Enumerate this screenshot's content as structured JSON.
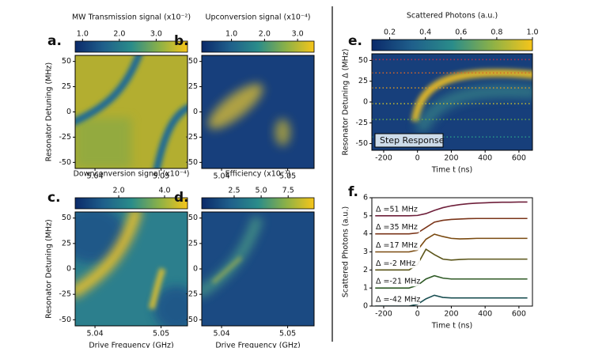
{
  "chart_data": [
    {
      "type": "heatmap",
      "panel": "a.",
      "colorbar_label": "MW Transmission signal (x10⁻²)",
      "ylabel": "Resonator Detuning (MHz)",
      "xlim": [
        5.037,
        5.054
      ],
      "ylim": [
        -56,
        56
      ],
      "xticks": [
        5.04,
        5.05
      ],
      "yticks": [
        -50,
        -25,
        0,
        25,
        50
      ],
      "clim": [
        0.8,
        3.85
      ],
      "cticks": [
        {
          "value": 1,
          "label": "1.0"
        },
        {
          "value": 2,
          "label": "2.0"
        },
        {
          "value": 3,
          "label": "3.0"
        }
      ]
    },
    {
      "type": "heatmap",
      "panel": "b.",
      "colorbar_label": "Upconversion signal (x10⁻⁴)",
      "xlim": [
        5.037,
        5.054
      ],
      "ylim": [
        -56,
        56
      ],
      "xticks": [
        5.04,
        5.05
      ],
      "yticks": [
        -50,
        -25,
        0,
        25,
        50
      ],
      "clim": [
        0.1,
        3.5
      ],
      "cticks": [
        {
          "value": 1,
          "label": "1.0"
        },
        {
          "value": 2,
          "label": "2.0"
        },
        {
          "value": 3,
          "label": "3.0"
        }
      ]
    },
    {
      "type": "heatmap",
      "panel": "c.",
      "colorbar_label": "Downconversion signal (x10⁻⁴)",
      "xlabel": "Drive Frequency (GHz)",
      "ylabel": "Resonator Detuning (MHz)",
      "xlim": [
        5.037,
        5.054
      ],
      "ylim": [
        -56,
        56
      ],
      "xticks": [
        5.04,
        5.05
      ],
      "yticks": [
        -50,
        -25,
        0,
        25,
        50
      ],
      "clim": [
        0.1,
        5.0
      ],
      "cticks": [
        {
          "value": 2,
          "label": "2.0"
        },
        {
          "value": 4,
          "label": "4.0"
        }
      ]
    },
    {
      "type": "heatmap",
      "panel": "d.",
      "colorbar_label": "Efficiency (x10⁻³)",
      "xlabel": "Drive Frequency (GHz)",
      "xlim": [
        5.037,
        5.054
      ],
      "ylim": [
        -56,
        56
      ],
      "xticks": [
        5.04,
        5.05
      ],
      "yticks": [
        -50,
        -25,
        0,
        25,
        50
      ],
      "clim": [
        -0.5,
        9.9
      ],
      "cticks": [
        2.5,
        {
          "value": 5,
          "label": "5.0"
        },
        7.5
      ]
    },
    {
      "type": "heatmap",
      "panel": "e.",
      "colorbar_label": "Scattered Photons (a.u.)",
      "annotation": "Step Response",
      "xlabel": "Time t (ns)",
      "ylabel": "Resonator Detuning Δ (MHz)",
      "xlim": [
        -270,
        680
      ],
      "ylim": [
        -58,
        58
      ],
      "xticks": [
        -200,
        0,
        200,
        400,
        600
      ],
      "yticks": [
        -50,
        -25,
        0,
        25,
        50
      ],
      "clim": [
        0.1,
        1.0
      ],
      "cticks": [
        0.2,
        0.4,
        0.6,
        0.8,
        {
          "value": 1,
          "label": "1.0"
        }
      ],
      "hlines": [
        51,
        35,
        17,
        -2,
        -21,
        -42
      ],
      "hline_colors": [
        "#c0304a",
        "#d8662a",
        "#e8a020",
        "#c9c030",
        "#6aa84a",
        "#2a9a8a"
      ]
    },
    {
      "type": "line",
      "panel": "f.",
      "xlabel": "Time t (ns)",
      "ylabel": "Scattered Photons (a.u.)",
      "xlim": [
        -270,
        680
      ],
      "ylim": [
        0,
        6
      ],
      "xticks": [
        -200,
        0,
        200,
        400,
        600
      ],
      "yticks": [
        0,
        1,
        2,
        3,
        4,
        5,
        6
      ],
      "x": [
        -250,
        -200,
        -150,
        -100,
        -50,
        0,
        50,
        100,
        150,
        200,
        250,
        300,
        350,
        400,
        450,
        500,
        550,
        600,
        650
      ],
      "series": [
        {
          "name": "Δ =51 MHz",
          "color": "#6e1f3a",
          "values": [
            5,
            5,
            5,
            5,
            5,
            5.02,
            5.12,
            5.3,
            5.45,
            5.55,
            5.62,
            5.67,
            5.7,
            5.72,
            5.74,
            5.75,
            5.75,
            5.76,
            5.76
          ]
        },
        {
          "name": "Δ =35 MHz",
          "color": "#7a3418",
          "values": [
            4,
            4,
            4,
            4,
            4,
            4.05,
            4.35,
            4.65,
            4.75,
            4.8,
            4.82,
            4.84,
            4.85,
            4.85,
            4.85,
            4.85,
            4.85,
            4.85,
            4.85
          ]
        },
        {
          "name": "Δ =17 MHz",
          "color": "#7a4a10",
          "values": [
            3,
            3,
            3,
            3,
            3,
            3.1,
            3.7,
            3.98,
            3.85,
            3.75,
            3.72,
            3.73,
            3.75,
            3.75,
            3.75,
            3.75,
            3.75,
            3.75,
            3.75
          ]
        },
        {
          "name": "Δ =-2 MHz",
          "color": "#5a5418",
          "values": [
            2,
            2,
            2,
            2,
            2,
            2.3,
            3.15,
            2.85,
            2.6,
            2.55,
            2.58,
            2.6,
            2.6,
            2.6,
            2.6,
            2.6,
            2.6,
            2.6,
            2.6
          ]
        },
        {
          "name": "Δ =-21 MHz",
          "color": "#2f5a26",
          "values": [
            1,
            1,
            1,
            1,
            1,
            1.15,
            1.5,
            1.68,
            1.55,
            1.5,
            1.5,
            1.5,
            1.5,
            1.5,
            1.5,
            1.5,
            1.5,
            1.5,
            1.5
          ]
        },
        {
          "name": "Δ =-42 MHz",
          "color": "#1a4f52",
          "values": [
            0,
            0,
            0,
            0,
            0,
            0.1,
            0.4,
            0.6,
            0.48,
            0.45,
            0.45,
            0.45,
            0.45,
            0.45,
            0.45,
            0.45,
            0.45,
            0.45,
            0.45
          ]
        }
      ]
    }
  ]
}
